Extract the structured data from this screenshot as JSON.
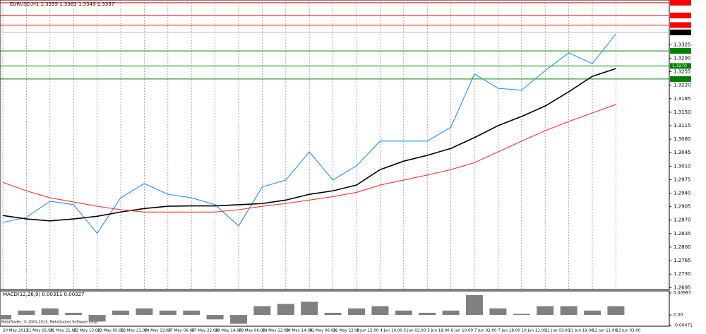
{
  "chart_data": [
    {
      "type": "line",
      "title": "EURUSD,H1 1.3355 1.3363 1.3349 1.3357",
      "categories": [
        "20 May 2013",
        "21 May 05:00",
        "21 May 21:00",
        "22 May 13:00",
        "23 May 05:00",
        "23 May 21:00",
        "24 May 13:00",
        "27 May 06:00",
        "27 May 22:00",
        "28 May 14:00",
        "29 May 06:00",
        "29 May 22:00",
        "30 May 14:00",
        "31 May 06:00",
        "31 May 22:00",
        "3 Jun 15:00",
        "4 Jun 10:00",
        "5 Jun 02:00",
        "5 Jun 18:00",
        "6 Jun 10:00",
        "7 Jun 02:00",
        "7 Jun 18:00",
        "10 Jun 11:00",
        "11 Jun 03:00",
        "11 Jun 19:00",
        "12 Jun 11:00",
        "13 Jun 03:00"
      ],
      "series": [
        {
          "color": "#1e90ff",
          "values": [
            1.2864,
            1.2877,
            1.2919,
            1.291,
            1.2836,
            1.2928,
            1.2965,
            1.2937,
            1.2928,
            1.291,
            1.2855,
            1.2956,
            1.2974,
            1.3047,
            1.2974,
            1.3011,
            1.3075,
            1.3075,
            1.3075,
            1.3111,
            1.3249,
            1.3212,
            1.3207,
            1.3258,
            1.3304,
            1.3276,
            1.3353
          ]
        },
        {
          "color": "#000000",
          "values": [
            1.2882,
            1.2873,
            1.2868,
            1.2873,
            1.288,
            1.2891,
            1.29,
            1.2906,
            1.2907,
            1.2907,
            1.291,
            1.2913,
            1.2922,
            1.2937,
            1.2946,
            1.2961,
            1.3001,
            1.3023,
            1.3038,
            1.3056,
            1.3084,
            1.3115,
            1.3139,
            1.3166,
            1.3203,
            1.3243,
            1.3263
          ]
        },
        {
          "color": "#ff3030",
          "values": [
            1.2968,
            1.2946,
            1.2928,
            1.2917,
            1.2906,
            1.2897,
            1.2891,
            1.2891,
            1.2891,
            1.2891,
            1.2897,
            1.2906,
            1.2913,
            1.2922,
            1.2931,
            1.2942,
            1.2961,
            1.2974,
            1.2987,
            1.3001,
            1.3019,
            1.3047,
            1.3075,
            1.3102,
            1.3126,
            1.3148,
            1.317
          ]
        }
      ],
      "ylim": [
        1.269,
        1.3441
      ],
      "yticks": [
        1.3325,
        {
          "value": 1.329,
          "label": "1.3290"
        },
        1.3255,
        {
          "value": 1.322,
          "label": "1.3220"
        },
        1.3185,
        {
          "value": 1.315,
          "label": "1.3150"
        },
        1.3115,
        {
          "value": 1.308,
          "label": "1.3080"
        },
        1.3045,
        {
          "value": 1.301,
          "label": "1.3010"
        },
        1.2975,
        {
          "value": 1.294,
          "label": "1.2940"
        },
        1.2905,
        {
          "value": 1.287,
          "label": "1.2870"
        },
        1.2835,
        {
          "value": 1.28,
          "label": "1.2800"
        },
        1.2765,
        {
          "value": 1.273,
          "label": "1.2730"
        },
        1.2695
      ],
      "levels": [
        {
          "value": 1.3434,
          "color": "#ff0000"
        },
        {
          "value": 1.3401,
          "color": "#ff0000"
        },
        {
          "value": 1.3376,
          "color": "#ff0000"
        },
        {
          "value": 1.3357,
          "color": "#000000"
        },
        {
          "value": 1.3309,
          "color": "#008000"
        },
        {
          "value": 1.327,
          "label": "1.3270",
          "color": "#008000"
        },
        {
          "value": 1.3236,
          "color": "#008000"
        }
      ],
      "grid": true,
      "footer": "MetaTrader, © 2001-2013, MetaQuotes Software Corp."
    },
    {
      "type": "bar",
      "title": "MACD(12,26,9) 0.00311 0.00327",
      "color": "#808080",
      "values": [
        -0.002,
        0.002,
        0.003,
        0.001,
        -0.003,
        0.002,
        0.003,
        0.002,
        0.002,
        -0.002,
        -0.004,
        0.004,
        0.005,
        0.006,
        0.001,
        0.003,
        0.004,
        0.002,
        0.001,
        0.002,
        0.009,
        0.003,
        0.0005,
        0.004,
        0.004,
        0.002,
        0.004
      ],
      "ylim": [
        -0.0051,
        0.0109
      ],
      "yticks": [
        0.00997,
        {
          "value": 0,
          "label": "0.00"
        },
        -0.00471
      ]
    }
  ]
}
